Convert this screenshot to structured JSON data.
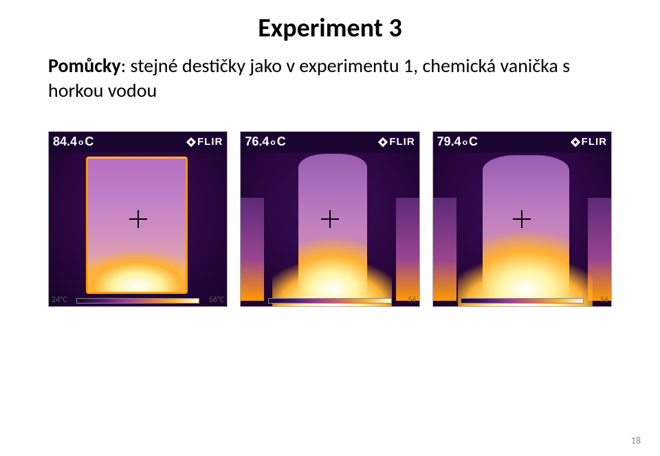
{
  "title": "Experiment 3",
  "subtitle_bold": "Pomůcky",
  "subtitle_rest": ": stejné destičky jako v experimentu 1, chemická vanička s horkou vodou",
  "page_number": "18",
  "brand": "FLIR",
  "thermals": [
    {
      "temp": "84.4",
      "unit_sup": "o",
      "unit": "C",
      "scale_low": "24°C",
      "scale_high": "56°C",
      "colors": {
        "bg": "#2a0740",
        "hot": "#ffffff",
        "warm": "#ffb030",
        "cool": "#b570c0"
      }
    },
    {
      "temp": "76.4",
      "unit_sup": "o",
      "unit": "C",
      "scale_low": "",
      "scale_high": "56",
      "colors": {
        "bg": "#2a0740",
        "hot": "#ffffff",
        "warm": "#ffb030",
        "cool": "#9a5cb0"
      }
    },
    {
      "temp": "79.4",
      "unit_sup": "o",
      "unit": "C",
      "scale_low": "",
      "scale_high": "56",
      "colors": {
        "bg": "#2a0740",
        "hot": "#ffffff",
        "warm": "#ffb030",
        "cool": "#9a5cb0"
      }
    }
  ]
}
